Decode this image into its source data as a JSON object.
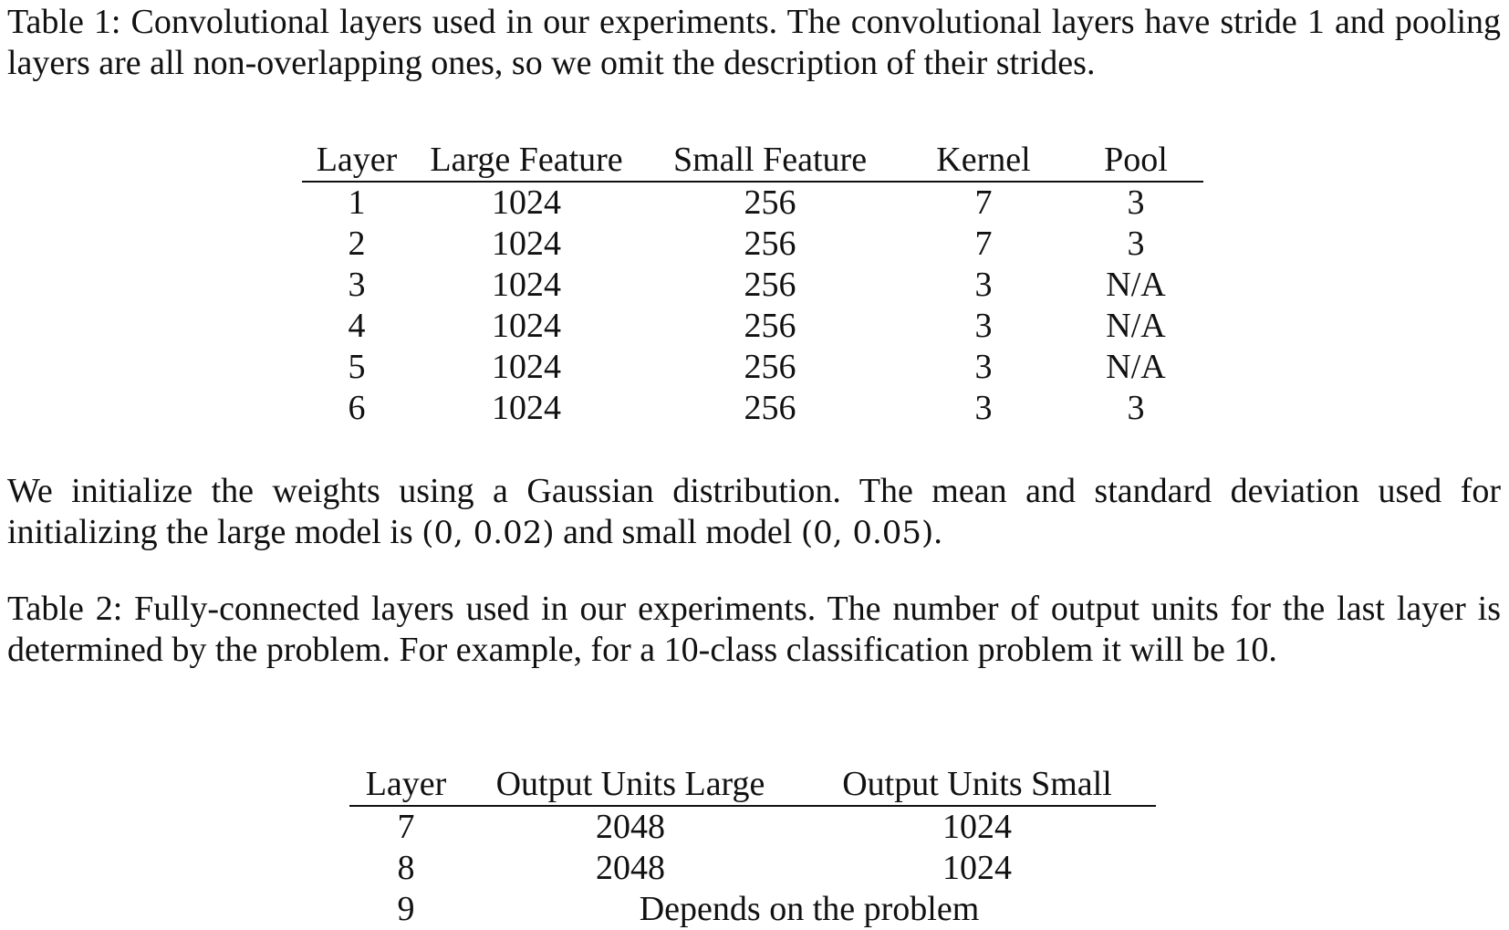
{
  "caption1": "Table 1: Convolutional layers used in our experiments. The convolutional layers have stride 1 and pooling layers are all non-overlapping ones, so we omit the description of their strides.",
  "table1": {
    "headers": [
      "Layer",
      "Large Feature",
      "Small Feature",
      "Kernel",
      "Pool"
    ],
    "rows": [
      [
        "1",
        "1024",
        "256",
        "7",
        "3"
      ],
      [
        "2",
        "1024",
        "256",
        "7",
        "3"
      ],
      [
        "3",
        "1024",
        "256",
        "3",
        "N/A"
      ],
      [
        "4",
        "1024",
        "256",
        "3",
        "N/A"
      ],
      [
        "5",
        "1024",
        "256",
        "3",
        "N/A"
      ],
      [
        "6",
        "1024",
        "256",
        "3",
        "3"
      ]
    ]
  },
  "para2": {
    "text_a": "We initialize the weights using a Gaussian distribution. The mean and standard deviation used for initializing the large model is ",
    "math_a": "(0, 0.02)",
    "text_b": " and small model ",
    "math_b": "(0, 0.05)",
    "text_c": "."
  },
  "caption2": "Table 2: Fully-connected layers used in our experiments. The number of output units for the last layer is determined by the problem. For example, for a 10-class classification problem it will be 10.",
  "table2": {
    "headers": [
      "Layer",
      "Output Units Large",
      "Output Units Small"
    ],
    "rows": [
      [
        "7",
        "2048",
        "1024"
      ],
      [
        "8",
        "2048",
        "1024"
      ]
    ],
    "last_row": {
      "layer": "9",
      "merged": "Depends on the problem"
    }
  }
}
